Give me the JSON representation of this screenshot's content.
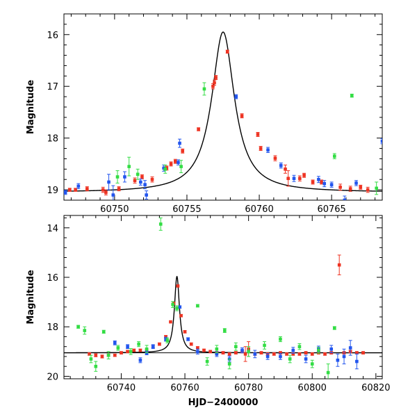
{
  "chart_data": [
    {
      "type": "scatter",
      "title": "",
      "xlabel": "",
      "ylabel": "Magnitude",
      "xlim": [
        60746.5,
        60768.5
      ],
      "ylim": [
        19.2,
        15.6
      ],
      "y_inverted": true,
      "grid": false,
      "x_ticks": [
        60750,
        60755,
        60760,
        60765
      ],
      "y_ticks": [
        16,
        17,
        18,
        19
      ],
      "series": [
        {
          "color": "#ee3322",
          "points": [
            [
              60746.9,
              19.0,
              0.03
            ],
            [
              60747.3,
              19.0,
              0.03
            ],
            [
              60748.1,
              18.98,
              0.04
            ],
            [
              60749.2,
              19.0,
              0.05
            ],
            [
              60749.4,
              19.05,
              0.05
            ],
            [
              60750.3,
              18.98,
              0.04
            ],
            [
              60751.4,
              18.82,
              0.05
            ],
            [
              60751.9,
              18.75,
              0.04
            ],
            [
              60752.6,
              18.8,
              0.05
            ],
            [
              60753.6,
              18.58,
              0.04
            ],
            [
              60753.9,
              18.5,
              0.04
            ],
            [
              60754.2,
              18.45,
              0.04
            ],
            [
              60754.7,
              18.25,
              0.04
            ],
            [
              60755.8,
              17.83,
              0.03
            ],
            [
              60756.8,
              17.0,
              0.05
            ],
            [
              60756.9,
              16.93,
              0.05
            ],
            [
              60757.0,
              16.83,
              0.04
            ],
            [
              60757.8,
              16.33,
              0.03
            ],
            [
              60758.8,
              17.57,
              0.04
            ],
            [
              60759.9,
              17.93,
              0.04
            ],
            [
              60760.1,
              18.2,
              0.04
            ],
            [
              60761.1,
              18.39,
              0.05
            ],
            [
              60761.8,
              18.6,
              0.08
            ],
            [
              60762.0,
              18.78,
              0.15
            ],
            [
              60762.8,
              18.78,
              0.05
            ],
            [
              60763.1,
              18.72,
              0.04
            ],
            [
              60763.7,
              18.85,
              0.04
            ],
            [
              60764.3,
              18.85,
              0.04
            ],
            [
              60765.6,
              18.95,
              0.06
            ],
            [
              60766.3,
              18.98,
              0.05
            ],
            [
              60767.0,
              18.95,
              0.04
            ],
            [
              60767.5,
              19.0,
              0.05
            ]
          ]
        },
        {
          "color": "#2255ee",
          "points": [
            [
              60746.6,
              19.05,
              0.04
            ],
            [
              60747.5,
              18.93,
              0.05
            ],
            [
              60749.6,
              18.85,
              0.15
            ],
            [
              60749.9,
              19.1,
              0.18
            ],
            [
              60750.7,
              18.75,
              0.1
            ],
            [
              60751.8,
              18.85,
              0.06
            ],
            [
              60752.1,
              18.9,
              0.08
            ],
            [
              60752.2,
              19.1,
              0.08
            ],
            [
              60753.4,
              18.58,
              0.06
            ],
            [
              60754.4,
              18.47,
              0.05
            ],
            [
              60754.5,
              18.1,
              0.08
            ],
            [
              60758.4,
              17.2,
              0.04
            ],
            [
              60760.6,
              18.23,
              0.05
            ],
            [
              60761.5,
              18.53,
              0.05
            ],
            [
              60762.4,
              18.78,
              0.06
            ],
            [
              60764.1,
              18.8,
              0.06
            ],
            [
              60764.5,
              18.88,
              0.06
            ],
            [
              60765.0,
              18.9,
              0.05
            ],
            [
              60765.9,
              19.2,
              0.08
            ],
            [
              60766.7,
              18.87,
              0.05
            ],
            [
              60768.5,
              18.06,
              0.05
            ]
          ]
        },
        {
          "color": "#33dd44",
          "points": [
            [
              60750.2,
              18.75,
              0.12
            ],
            [
              60751.0,
              18.55,
              0.18
            ],
            [
              60751.6,
              18.7,
              0.1
            ],
            [
              60753.5,
              18.6,
              0.08
            ],
            [
              60754.6,
              18.55,
              0.12
            ],
            [
              60756.2,
              17.05,
              0.12
            ],
            [
              60765.2,
              18.35,
              0.05
            ],
            [
              60766.4,
              17.18,
              0.03
            ],
            [
              60768.1,
              18.97,
              0.12
            ]
          ]
        }
      ]
    },
    {
      "type": "scatter",
      "title": "",
      "xlabel": "HJD−2400000",
      "ylabel": "Magnitude",
      "xlim": [
        60722,
        60822
      ],
      "ylim": [
        20.1,
        13.5
      ],
      "y_inverted": true,
      "grid": false,
      "x_ticks": [
        60740,
        60760,
        60780,
        60800,
        60820
      ],
      "y_ticks": [
        14,
        16,
        18,
        20
      ],
      "series": [
        {
          "color": "#ee3322",
          "points": [
            [
              60730,
              19.1,
              0.05
            ],
            [
              60732,
              19.15,
              0.06
            ],
            [
              60734,
              19.2,
              0.06
            ],
            [
              60736,
              19.15,
              0.05
            ],
            [
              60738,
              19.15,
              0.05
            ],
            [
              60740,
              19.05,
              0.05
            ],
            [
              60742,
              19.0,
              0.05
            ],
            [
              60744,
              18.95,
              0.05
            ],
            [
              60746,
              18.95,
              0.05
            ],
            [
              60748,
              18.95,
              0.05
            ],
            [
              60750,
              18.8,
              0.05
            ],
            [
              60752,
              18.7,
              0.05
            ],
            [
              60754,
              18.4,
              0.05
            ],
            [
              60755.5,
              17.8,
              0.04
            ],
            [
              60756.5,
              17.05,
              0.05
            ],
            [
              60757.8,
              16.35,
              0.04
            ],
            [
              60758.8,
              17.55,
              0.05
            ],
            [
              60760,
              18.2,
              0.05
            ],
            [
              60762,
              18.7,
              0.05
            ],
            [
              60764,
              18.85,
              0.05
            ],
            [
              60766,
              18.95,
              0.05
            ],
            [
              60768,
              19.0,
              0.05
            ],
            [
              60770,
              19.05,
              0.05
            ],
            [
              60772,
              19.05,
              0.05
            ],
            [
              60774,
              19.1,
              0.05
            ],
            [
              60776,
              19.05,
              0.05
            ],
            [
              60778,
              19.0,
              0.05
            ],
            [
              60779,
              19.1,
              0.3
            ],
            [
              60780,
              18.9,
              0.3
            ],
            [
              60782,
              19.1,
              0.05
            ],
            [
              60784,
              19.05,
              0.05
            ],
            [
              60786,
              19.1,
              0.05
            ],
            [
              60788,
              19.1,
              0.05
            ],
            [
              60790,
              19.05,
              0.05
            ],
            [
              60792,
              19.1,
              0.05
            ],
            [
              60794,
              19.1,
              0.05
            ],
            [
              60796,
              19.1,
              0.05
            ],
            [
              60798,
              19.05,
              0.05
            ],
            [
              60800,
              19.1,
              0.05
            ],
            [
              60802,
              19.05,
              0.05
            ],
            [
              60804,
              19.1,
              0.05
            ],
            [
              60806,
              19.05,
              0.05
            ],
            [
              60808.5,
              15.5,
              0.4
            ],
            [
              60810,
              19.05,
              0.05
            ],
            [
              60812,
              19.0,
              0.05
            ],
            [
              60814,
              19.05,
              0.05
            ],
            [
              60816,
              19.05,
              0.05
            ]
          ]
        },
        {
          "color": "#2255ee",
          "points": [
            [
              60738,
              18.65,
              0.08
            ],
            [
              60742,
              18.8,
              0.08
            ],
            [
              60746,
              19.35,
              0.1
            ],
            [
              60748,
              19.05,
              0.08
            ],
            [
              60750,
              18.8,
              0.08
            ],
            [
              60754,
              18.5,
              0.08
            ],
            [
              60758.4,
              17.2,
              0.05
            ],
            [
              60761,
              18.5,
              0.06
            ],
            [
              60764,
              19.0,
              0.1
            ],
            [
              60770,
              19.1,
              0.1
            ],
            [
              60774,
              19.3,
              0.12
            ],
            [
              60778,
              18.95,
              0.1
            ],
            [
              60782,
              19.1,
              0.15
            ],
            [
              60786,
              19.2,
              0.12
            ],
            [
              60790,
              19.2,
              0.12
            ],
            [
              60794,
              18.95,
              0.12
            ],
            [
              60798,
              19.3,
              0.15
            ],
            [
              60802,
              18.9,
              0.12
            ],
            [
              60806,
              18.9,
              0.15
            ],
            [
              60808,
              19.35,
              0.25
            ],
            [
              60810,
              19.2,
              0.3
            ],
            [
              60812,
              18.85,
              0.3
            ],
            [
              60814,
              19.4,
              0.3
            ]
          ]
        },
        {
          "color": "#33dd44",
          "points": [
            [
              60726.5,
              18.0,
              0.06
            ],
            [
              60728.5,
              18.15,
              0.15
            ],
            [
              60730.5,
              19.3,
              0.15
            ],
            [
              60732,
              19.6,
              0.2
            ],
            [
              60734.5,
              18.2,
              0.06
            ],
            [
              60736,
              19.15,
              0.15
            ],
            [
              60739,
              18.85,
              0.1
            ],
            [
              60743,
              19.0,
              0.12
            ],
            [
              60745.5,
              18.7,
              0.1
            ],
            [
              60748,
              18.9,
              0.15
            ],
            [
              60752.4,
              13.85,
              0.25
            ],
            [
              60754.5,
              18.55,
              0.1
            ],
            [
              60756.2,
              17.1,
              0.12
            ],
            [
              60757.5,
              17.25,
              0.1
            ],
            [
              60764,
              17.15,
              0.05
            ],
            [
              60767,
              19.4,
              0.15
            ],
            [
              60770,
              18.9,
              0.15
            ],
            [
              60772.5,
              18.15,
              0.08
            ],
            [
              60774,
              19.5,
              0.2
            ],
            [
              60776,
              18.8,
              0.15
            ],
            [
              60780,
              19.0,
              0.2
            ],
            [
              60785,
              18.75,
              0.15
            ],
            [
              60790,
              18.5,
              0.1
            ],
            [
              60793,
              19.3,
              0.15
            ],
            [
              60796,
              18.8,
              0.12
            ],
            [
              60800,
              19.5,
              0.15
            ],
            [
              60802,
              18.95,
              0.12
            ],
            [
              60805,
              19.85,
              0.35
            ],
            [
              60807,
              18.05,
              0.06
            ]
          ]
        }
      ]
    }
  ]
}
